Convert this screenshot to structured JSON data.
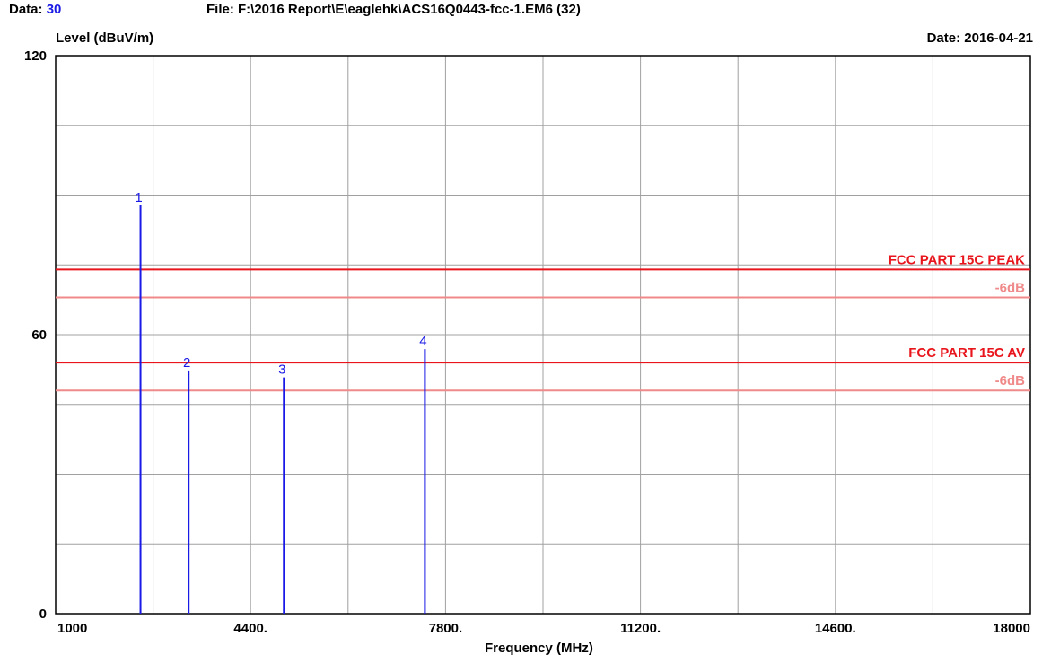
{
  "header": {
    "data_label": "Data:",
    "data_value": "30",
    "file_text": "File: F:\\2016 Report\\E\\eaglehk\\ACS16Q0443-fcc-1.EM6  (32)",
    "date_text": "Date: 2016-04-21"
  },
  "chart_data": {
    "type": "bar",
    "ylabel": "Level (dBuV/m)",
    "xlabel": "Frequency (MHz)",
    "xlim": [
      1000,
      18000
    ],
    "ylim": [
      0,
      120
    ],
    "x_ticks": [
      1000,
      4400,
      7800,
      11200,
      14600,
      18000
    ],
    "x_tick_labels": [
      "1000",
      "4400.",
      "7800.",
      "11200.",
      "14600.",
      "18000"
    ],
    "y_tick_labels": [
      {
        "value": 0,
        "label": "0"
      },
      {
        "value": 60,
        "label": "60"
      },
      {
        "value": 120,
        "label": "120"
      }
    ],
    "grid": true,
    "markers": [
      {
        "label": "1",
        "x": 2480,
        "y": 87.8
      },
      {
        "label": "2",
        "x": 3320,
        "y": 52.3
      },
      {
        "label": "3",
        "x": 4980,
        "y": 50.8
      },
      {
        "label": "4",
        "x": 7440,
        "y": 56.9
      }
    ],
    "limit_lines": [
      {
        "name": "FCC PART 15C PEAK",
        "y": 74,
        "color": "#e8161c",
        "label_color": "#e8161c"
      },
      {
        "name": "-6dB",
        "y": 68,
        "color": "#f08a8a",
        "label_color": "#f08a8a"
      },
      {
        "name": "FCC PART 15C AV",
        "y": 54,
        "color": "#e8161c",
        "label_color": "#e8161c"
      },
      {
        "name": "-6dB",
        "y": 48,
        "color": "#f08a8a",
        "label_color": "#f08a8a"
      }
    ],
    "colors": {
      "markers": "#1a1ae6",
      "grid": "#a0a0a0"
    }
  }
}
